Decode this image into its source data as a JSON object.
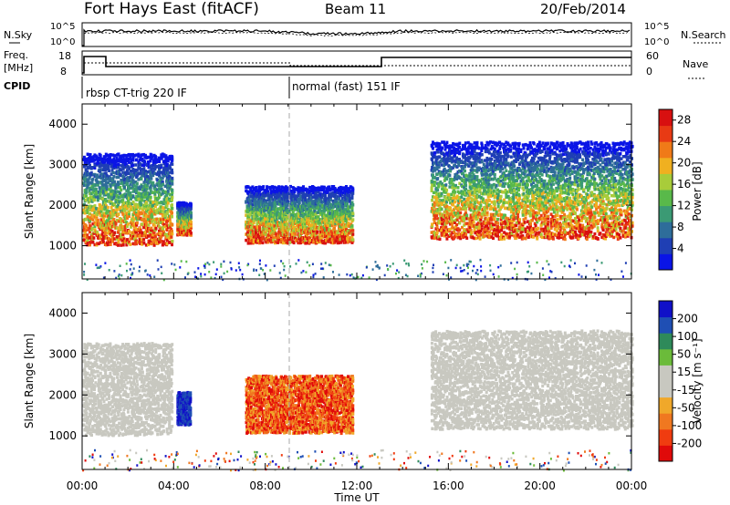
{
  "header": {
    "station": "Fort Hays East (fitACF)",
    "beam": "Beam 11",
    "date": "20/Feb/2014"
  },
  "noise_panel": {
    "left_label": "N.Sky",
    "right_label": "N.Search",
    "ticks": [
      "10^5",
      "10^0"
    ]
  },
  "freq_panel": {
    "left_label_1": "Freq.",
    "left_label_2": "[MHz]",
    "right_label": "Nave",
    "left_ticks": [
      "18",
      "8"
    ],
    "right_ticks": [
      "60",
      "0"
    ]
  },
  "cpid_panel": {
    "label": "CPID",
    "modes": [
      "rbsp CT-trig 220 IF",
      "normal (fast) 151 IF"
    ]
  },
  "x_axis": {
    "label": "Time UT",
    "ticks": [
      "00:00",
      "04:00",
      "08:00",
      "12:00",
      "16:00",
      "20:00",
      "00:00"
    ]
  },
  "chart_data": [
    {
      "type": "heatmap",
      "quantity": "power",
      "ylabel": "Slant Range [km]",
      "yticks": [
        "4000",
        "3000",
        "2000",
        "1000"
      ],
      "ylim": [
        180,
        4500
      ],
      "xlim_hours": [
        0,
        24
      ],
      "colorbar": {
        "label": "Power [dB]",
        "ticks": [
          "28",
          "24",
          "20",
          "16",
          "12",
          "8",
          "4"
        ],
        "range": [
          0,
          30
        ]
      },
      "echo_regions": [
        {
          "t_start": 0.0,
          "t_end": 3.9,
          "range_km_start": 1050,
          "range_km_end": 3300
        },
        {
          "t_start": 4.1,
          "t_end": 4.7,
          "range_km_start": 1300,
          "range_km_end": 2100
        },
        {
          "t_start": 7.1,
          "t_end": 11.8,
          "range_km_start": 1100,
          "range_km_end": 2500
        },
        {
          "t_start": 15.2,
          "t_end": 24.0,
          "range_km_start": 1200,
          "range_km_end": 3600
        }
      ]
    },
    {
      "type": "heatmap",
      "quantity": "velocity",
      "ylabel": "Slant Range [km]",
      "yticks": [
        "4000",
        "3000",
        "2000",
        "1000"
      ],
      "ylim": [
        180,
        4500
      ],
      "xlim_hours": [
        0,
        24
      ],
      "colorbar": {
        "label": "Velocity [m s⁻¹]",
        "ticks": [
          "200",
          "100",
          "50",
          "15",
          "-15",
          "-50",
          "-100",
          "-200"
        ],
        "range": [
          -250,
          250
        ]
      },
      "echo_regions": [
        {
          "t_start": 0.0,
          "t_end": 3.9,
          "range_km_start": 1050,
          "range_km_end": 3300,
          "velocity": "ground scatter"
        },
        {
          "t_start": 4.1,
          "t_end": 4.7,
          "range_km_start": 1300,
          "range_km_end": 2100,
          "velocity": 200
        },
        {
          "t_start": 7.1,
          "t_end": 11.8,
          "range_km_start": 1100,
          "range_km_end": 2500,
          "velocity": -180
        },
        {
          "t_start": 15.2,
          "t_end": 24.0,
          "range_km_start": 1200,
          "range_km_end": 3600,
          "velocity": "ground scatter"
        }
      ]
    }
  ],
  "colors": {
    "power_scale": [
      "#0a14e6",
      "#1f3fb4",
      "#2e6d9a",
      "#3b9a74",
      "#59b94a",
      "#a8cc3a",
      "#f0b020",
      "#f07a18",
      "#e83a14",
      "#d81010"
    ],
    "velocity_scale": [
      "#e00a0a",
      "#f03c10",
      "#f07820",
      "#f0a82a",
      "#c8c8c0",
      "#c8c8c0",
      "#6bbb3a",
      "#2e8a5a",
      "#1f4fb4",
      "#1010c8"
    ],
    "ground_scatter": "#c8c8c0",
    "dash_line": "#aaaaaa"
  }
}
